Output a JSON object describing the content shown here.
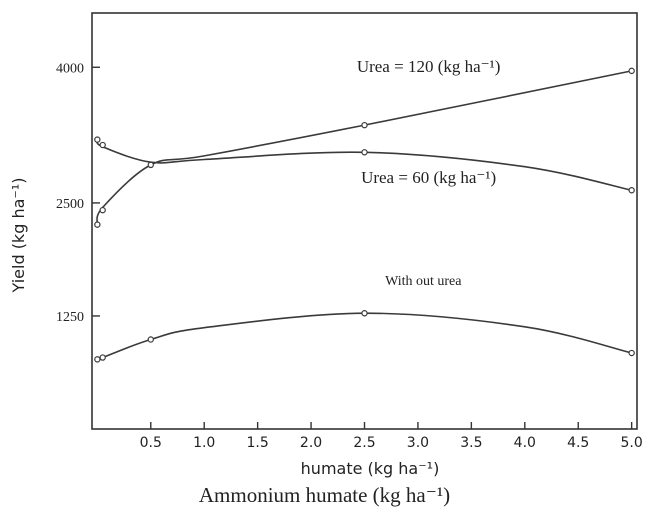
{
  "footer_caption": "Ammonium humate (kg ha⁻¹)",
  "chart_data": {
    "type": "line",
    "title": "",
    "xlabel": "humate (kg ha⁻¹)",
    "ylabel": "Yield (kg ha⁻¹)",
    "xlim": [
      -0.05,
      5.05
    ],
    "ylim": [
      0,
      4600
    ],
    "x_ticks": [
      0.5,
      1.0,
      1.5,
      2.0,
      2.5,
      3.0,
      3.5,
      4.0,
      4.5,
      5.0
    ],
    "x_tick_labels": [
      "0.5",
      "1.0",
      "1.5",
      "2.0",
      "2.5",
      "3.0",
      "3.5",
      "4.0",
      "4.5",
      "5.0"
    ],
    "y_ticks": [
      1250,
      2500,
      4000
    ],
    "y_tick_labels": [
      "1250",
      "2500",
      "4000"
    ],
    "grid": false,
    "colors": {
      "line": "#3a3a3a",
      "marker": "#ffffff"
    },
    "series": [
      {
        "label": "Urea = 120 (kg ha⁻¹)",
        "points": [
          [
            0,
            2260
          ],
          [
            0.05,
            2450
          ],
          [
            0.5,
            2920
          ],
          [
            1.0,
            3020
          ],
          [
            2.5,
            3360
          ],
          [
            5.0,
            3960
          ]
        ],
        "markers": [
          [
            0,
            2260
          ],
          [
            0.05,
            2420
          ],
          [
            2.5,
            3360
          ],
          [
            5.0,
            3960
          ]
        ]
      },
      {
        "label": "Urea = 60 (kg ha⁻¹)",
        "points": [
          [
            0,
            3200
          ],
          [
            0.05,
            3120
          ],
          [
            0.5,
            2950
          ],
          [
            1.0,
            2980
          ],
          [
            2.5,
            3060
          ],
          [
            4.0,
            2900
          ],
          [
            5.0,
            2640
          ]
        ],
        "markers": [
          [
            0,
            3200
          ],
          [
            0.05,
            3140
          ],
          [
            0.5,
            2920
          ],
          [
            2.5,
            3060
          ],
          [
            5.0,
            2640
          ]
        ]
      },
      {
        "label": "With out urea",
        "points": [
          [
            0,
            770
          ],
          [
            0.05,
            790
          ],
          [
            0.5,
            990
          ],
          [
            1.0,
            1120
          ],
          [
            2.5,
            1280
          ],
          [
            4.0,
            1130
          ],
          [
            5.0,
            840
          ]
        ],
        "markers": [
          [
            0,
            770
          ],
          [
            0.05,
            790
          ],
          [
            0.5,
            990
          ],
          [
            2.5,
            1280
          ],
          [
            5.0,
            840
          ]
        ]
      }
    ]
  }
}
